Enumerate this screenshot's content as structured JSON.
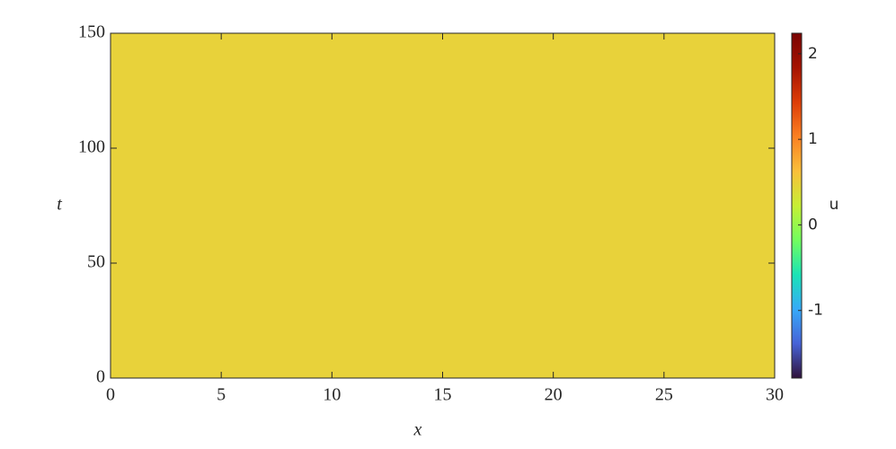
{
  "chart_data": {
    "type": "heatmap",
    "xlabel": "x",
    "ylabel": "t",
    "colorbar_label": "u",
    "xlim": [
      0,
      30
    ],
    "xticks": [
      0,
      5,
      10,
      15,
      20,
      25,
      30
    ],
    "ylim": [
      0,
      150
    ],
    "yticks": [
      0,
      50,
      100,
      150
    ],
    "clim": [
      -1.79,
      2.24
    ],
    "cticks": [
      -1,
      0,
      1,
      2
    ],
    "colormap": [
      "#30123b",
      "#4662d7",
      "#36aaf9",
      "#1ae4b6",
      "#72fe5e",
      "#c7ef34",
      "#fabf3a",
      "#fb8022",
      "#dd3d08",
      "#a51301",
      "#7a0403"
    ]
  }
}
